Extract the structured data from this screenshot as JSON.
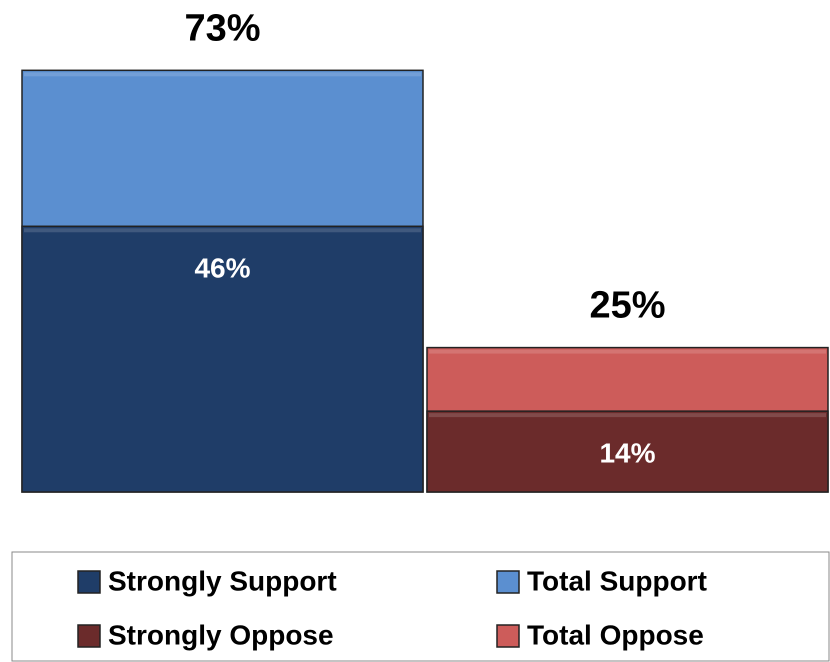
{
  "chart_data": {
    "type": "bar",
    "overlay": true,
    "categories": [
      null,
      null
    ],
    "series": [
      {
        "name": "Strongly Support",
        "color": "#1f3d68",
        "values": [
          46,
          null
        ],
        "value_labels": [
          "46%",
          null
        ]
      },
      {
        "name": "Total Support",
        "color": "#5b8fd0",
        "values": [
          73,
          null
        ],
        "value_labels": [
          "73%",
          null
        ]
      },
      {
        "name": "Strongly Oppose",
        "color": "#6b2b2b",
        "values": [
          null,
          14
        ],
        "value_labels": [
          null,
          "14%"
        ]
      },
      {
        "name": "Total Oppose",
        "color": "#cd5c5a",
        "values": [
          null,
          25
        ],
        "value_labels": [
          null,
          "25%"
        ]
      }
    ],
    "ylim": [
      0,
      85
    ],
    "grid": false,
    "legend": "bottom"
  }
}
